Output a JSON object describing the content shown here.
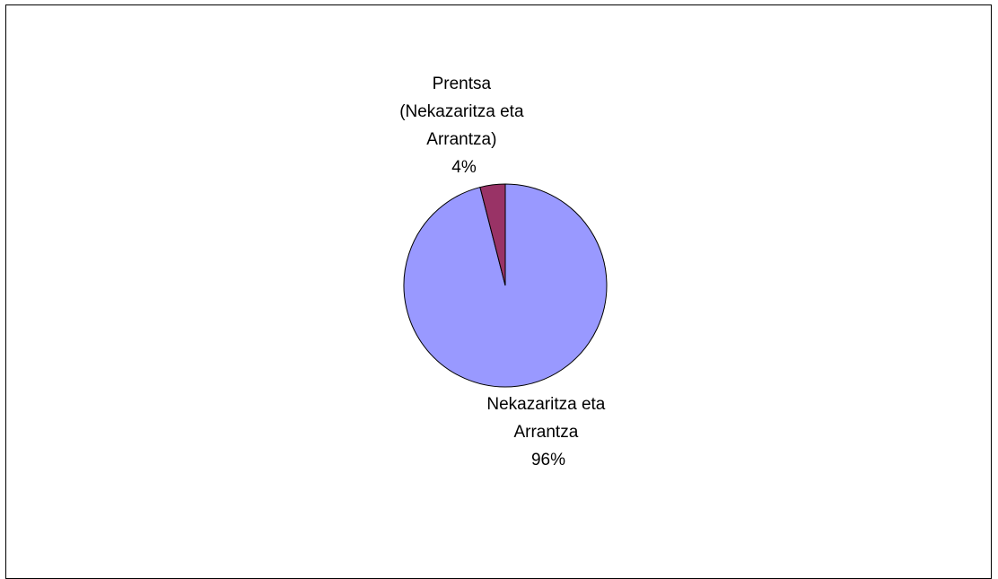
{
  "chart_data": {
    "type": "pie",
    "slices": [
      {
        "label_lines": [
          "Nekazaritza eta",
          "Arrantza"
        ],
        "percent_label": "96%",
        "value": 96,
        "color": "#9999ff"
      },
      {
        "label_lines": [
          "Prentsa",
          "(Nekazaritza eta",
          "Arrantza)"
        ],
        "percent_label": "4%",
        "value": 4,
        "color": "#993366"
      }
    ]
  }
}
